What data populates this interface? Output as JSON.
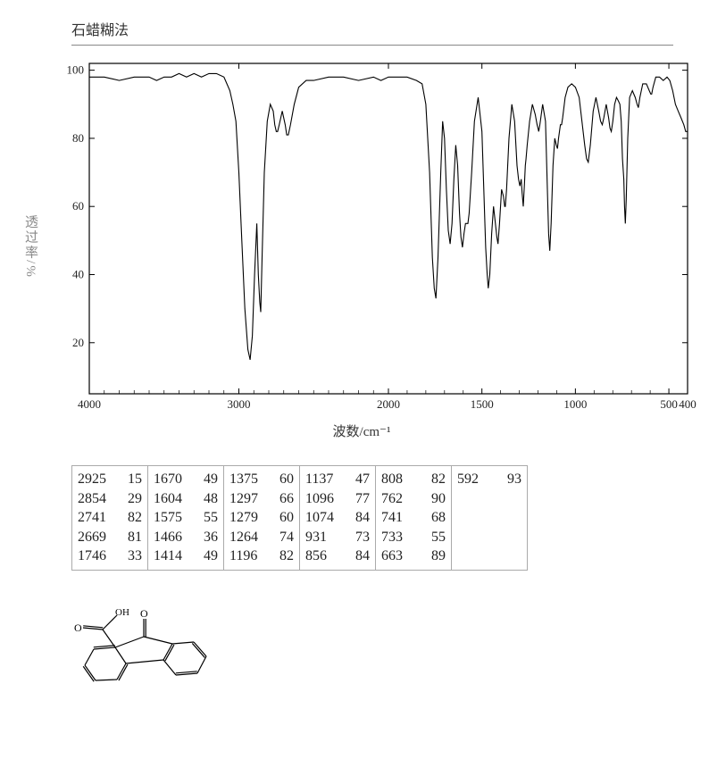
{
  "title": "石蜡糊法",
  "chart": {
    "type": "line",
    "xlabel": "波数/cm⁻¹",
    "ylabel": "透过率/%",
    "xlim": [
      4000,
      400
    ],
    "ylim": [
      5,
      102
    ],
    "xticks": [
      4000,
      3000,
      2000,
      1500,
      1000,
      500,
      400
    ],
    "yticks": [
      20,
      40,
      60,
      80,
      100
    ],
    "line_color": "#000000",
    "line_width": 1.1,
    "axis_color": "#000000",
    "background_color": "#ffffff",
    "trace": [
      [
        4000,
        98
      ],
      [
        3900,
        98
      ],
      [
        3800,
        97
      ],
      [
        3700,
        98
      ],
      [
        3600,
        98
      ],
      [
        3550,
        97
      ],
      [
        3500,
        98
      ],
      [
        3450,
        98
      ],
      [
        3400,
        99
      ],
      [
        3350,
        98
      ],
      [
        3300,
        99
      ],
      [
        3250,
        98
      ],
      [
        3200,
        99
      ],
      [
        3150,
        99
      ],
      [
        3100,
        98
      ],
      [
        3080,
        96
      ],
      [
        3060,
        94
      ],
      [
        3040,
        90
      ],
      [
        3020,
        85
      ],
      [
        3000,
        70
      ],
      [
        2980,
        50
      ],
      [
        2960,
        30
      ],
      [
        2940,
        18
      ],
      [
        2925,
        15
      ],
      [
        2910,
        22
      ],
      [
        2895,
        40
      ],
      [
        2880,
        55
      ],
      [
        2870,
        40
      ],
      [
        2860,
        32
      ],
      [
        2854,
        29
      ],
      [
        2845,
        45
      ],
      [
        2830,
        70
      ],
      [
        2810,
        85
      ],
      [
        2790,
        90
      ],
      [
        2770,
        88
      ],
      [
        2760,
        84
      ],
      [
        2750,
        82
      ],
      [
        2741,
        82
      ],
      [
        2730,
        84
      ],
      [
        2710,
        88
      ],
      [
        2690,
        84
      ],
      [
        2680,
        81
      ],
      [
        2669,
        81
      ],
      [
        2655,
        84
      ],
      [
        2630,
        90
      ],
      [
        2600,
        95
      ],
      [
        2550,
        97
      ],
      [
        2500,
        97
      ],
      [
        2400,
        98
      ],
      [
        2300,
        98
      ],
      [
        2200,
        97
      ],
      [
        2100,
        98
      ],
      [
        2050,
        97
      ],
      [
        2000,
        98
      ],
      [
        1950,
        98
      ],
      [
        1900,
        98
      ],
      [
        1850,
        97
      ],
      [
        1820,
        96
      ],
      [
        1800,
        90
      ],
      [
        1780,
        70
      ],
      [
        1765,
        45
      ],
      [
        1755,
        36
      ],
      [
        1746,
        33
      ],
      [
        1735,
        45
      ],
      [
        1720,
        70
      ],
      [
        1710,
        85
      ],
      [
        1700,
        80
      ],
      [
        1690,
        65
      ],
      [
        1680,
        53
      ],
      [
        1670,
        49
      ],
      [
        1660,
        55
      ],
      [
        1650,
        68
      ],
      [
        1640,
        78
      ],
      [
        1630,
        72
      ],
      [
        1620,
        58
      ],
      [
        1612,
        51
      ],
      [
        1604,
        48
      ],
      [
        1596,
        52
      ],
      [
        1588,
        55
      ],
      [
        1580,
        55
      ],
      [
        1575,
        55
      ],
      [
        1568,
        58
      ],
      [
        1555,
        70
      ],
      [
        1540,
        85
      ],
      [
        1520,
        92
      ],
      [
        1500,
        82
      ],
      [
        1490,
        65
      ],
      [
        1480,
        48
      ],
      [
        1472,
        40
      ],
      [
        1466,
        36
      ],
      [
        1458,
        40
      ],
      [
        1448,
        52
      ],
      [
        1438,
        60
      ],
      [
        1428,
        55
      ],
      [
        1420,
        51
      ],
      [
        1414,
        49
      ],
      [
        1406,
        55
      ],
      [
        1395,
        65
      ],
      [
        1385,
        63
      ],
      [
        1378,
        60
      ],
      [
        1375,
        60
      ],
      [
        1368,
        65
      ],
      [
        1355,
        80
      ],
      [
        1340,
        90
      ],
      [
        1325,
        85
      ],
      [
        1312,
        72
      ],
      [
        1304,
        68
      ],
      [
        1297,
        66
      ],
      [
        1290,
        68
      ],
      [
        1285,
        64
      ],
      [
        1279,
        60
      ],
      [
        1272,
        67
      ],
      [
        1268,
        72
      ],
      [
        1264,
        74
      ],
      [
        1258,
        78
      ],
      [
        1245,
        85
      ],
      [
        1230,
        90
      ],
      [
        1215,
        87
      ],
      [
        1205,
        84
      ],
      [
        1200,
        83
      ],
      [
        1196,
        82
      ],
      [
        1190,
        84
      ],
      [
        1175,
        90
      ],
      [
        1160,
        85
      ],
      [
        1150,
        65
      ],
      [
        1143,
        52
      ],
      [
        1137,
        47
      ],
      [
        1130,
        55
      ],
      [
        1120,
        72
      ],
      [
        1110,
        80
      ],
      [
        1102,
        78
      ],
      [
        1096,
        77
      ],
      [
        1090,
        80
      ],
      [
        1080,
        84
      ],
      [
        1074,
        84
      ],
      [
        1068,
        86
      ],
      [
        1055,
        92
      ],
      [
        1040,
        95
      ],
      [
        1020,
        96
      ],
      [
        1000,
        95
      ],
      [
        980,
        92
      ],
      [
        965,
        85
      ],
      [
        950,
        78
      ],
      [
        940,
        74
      ],
      [
        931,
        73
      ],
      [
        920,
        78
      ],
      [
        905,
        88
      ],
      [
        890,
        92
      ],
      [
        875,
        88
      ],
      [
        865,
        85
      ],
      [
        856,
        84
      ],
      [
        848,
        86
      ],
      [
        835,
        90
      ],
      [
        822,
        86
      ],
      [
        815,
        83
      ],
      [
        808,
        82
      ],
      [
        800,
        85
      ],
      [
        790,
        90
      ],
      [
        780,
        92
      ],
      [
        770,
        91
      ],
      [
        762,
        90
      ],
      [
        755,
        85
      ],
      [
        748,
        74
      ],
      [
        741,
        68
      ],
      [
        737,
        60
      ],
      [
        733,
        55
      ],
      [
        728,
        62
      ],
      [
        720,
        80
      ],
      [
        710,
        92
      ],
      [
        695,
        94
      ],
      [
        680,
        92
      ],
      [
        670,
        90
      ],
      [
        663,
        89
      ],
      [
        655,
        92
      ],
      [
        640,
        96
      ],
      [
        620,
        96
      ],
      [
        605,
        94
      ],
      [
        597,
        93
      ],
      [
        592,
        93
      ],
      [
        585,
        95
      ],
      [
        570,
        98
      ],
      [
        550,
        98
      ],
      [
        530,
        97
      ],
      [
        510,
        98
      ],
      [
        495,
        97
      ],
      [
        480,
        94
      ],
      [
        465,
        90
      ],
      [
        450,
        88
      ],
      [
        435,
        86
      ],
      [
        420,
        84
      ],
      [
        410,
        82
      ],
      [
        400,
        82
      ]
    ]
  },
  "peak_columns": [
    [
      [
        "2925",
        "15"
      ],
      [
        "2854",
        "29"
      ],
      [
        "2741",
        "82"
      ],
      [
        "2669",
        "81"
      ],
      [
        "1746",
        "33"
      ]
    ],
    [
      [
        "1670",
        "49"
      ],
      [
        "1604",
        "48"
      ],
      [
        "1575",
        "55"
      ],
      [
        "1466",
        "36"
      ],
      [
        "1414",
        "49"
      ]
    ],
    [
      [
        "1375",
        "60"
      ],
      [
        "1297",
        "66"
      ],
      [
        "1279",
        "60"
      ],
      [
        "1264",
        "74"
      ],
      [
        "1196",
        "82"
      ]
    ],
    [
      [
        "1137",
        "47"
      ],
      [
        "1096",
        "77"
      ],
      [
        "1074",
        "84"
      ],
      [
        "931",
        "73"
      ],
      [
        "856",
        "84"
      ]
    ],
    [
      [
        "808",
        "82"
      ],
      [
        "762",
        "90"
      ],
      [
        "741",
        "68"
      ],
      [
        "733",
        "55"
      ],
      [
        "663",
        "89"
      ]
    ],
    [
      [
        "592",
        "93"
      ]
    ]
  ],
  "molecule": {
    "line_color": "#000000",
    "line_width": 1.2,
    "label_O": "O",
    "label_OH": "OH"
  }
}
